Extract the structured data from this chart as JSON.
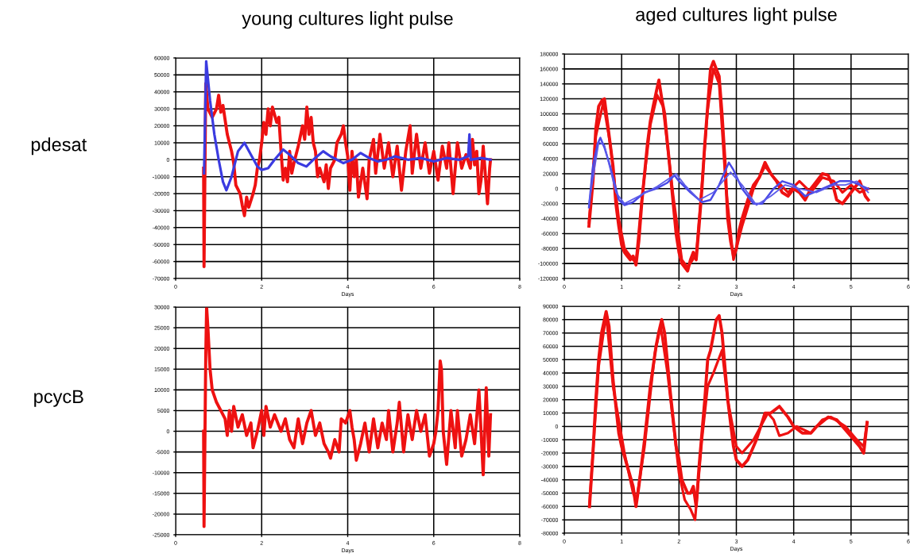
{
  "chart_data": [
    {
      "type": "line",
      "title": "young cultures light pulse",
      "xlabel": "Days",
      "ylabel": "pdesat",
      "xlim": [
        0,
        8
      ],
      "xticks": [
        0,
        2,
        4,
        6,
        8
      ],
      "ylim": [
        -70000,
        60000
      ],
      "yticks": [
        -70000,
        -60000,
        -50000,
        -40000,
        -30000,
        -20000,
        -10000,
        0,
        10000,
        20000,
        30000,
        40000,
        50000,
        60000
      ],
      "grid": true,
      "series": [
        {
          "color": "#ee1111",
          "x": [
            0.65,
            0.66,
            0.7,
            0.75,
            0.85,
            0.95,
            1.0,
            1.05,
            1.1,
            1.2,
            1.3,
            1.35,
            1.4,
            1.5,
            1.55,
            1.6,
            1.65,
            1.7,
            1.8,
            1.85,
            1.9,
            1.95,
            2.0,
            2.05,
            2.1,
            2.15,
            2.2,
            2.25,
            2.35,
            2.4,
            2.45,
            2.5,
            2.55,
            2.6,
            2.65,
            2.7,
            2.75,
            2.85,
            2.95,
            3.0,
            3.05,
            3.1,
            3.15,
            3.2,
            3.25,
            3.3,
            3.35,
            3.45,
            3.5,
            3.55,
            3.6,
            3.7,
            3.75,
            3.85,
            3.9,
            3.95,
            4.0,
            4.05,
            4.1,
            4.15,
            4.2,
            4.25,
            4.35,
            4.45,
            4.5,
            4.6,
            4.65,
            4.75,
            4.85,
            4.95,
            5.05,
            5.15,
            5.25,
            5.35,
            5.45,
            5.5,
            5.6,
            5.7,
            5.8,
            5.9,
            6.0,
            6.1,
            6.2,
            6.3,
            6.35,
            6.45,
            6.55,
            6.65,
            6.75,
            6.85,
            6.9,
            6.95,
            7.0,
            7.05,
            7.1,
            7.15,
            7.25,
            7.3,
            7.32
          ],
          "values": [
            -5000,
            -63000,
            45000,
            30000,
            25000,
            30000,
            38000,
            28000,
            32000,
            15000,
            5000,
            -2000,
            -15000,
            -20000,
            -27000,
            -33000,
            -22000,
            -28000,
            -20000,
            -15000,
            -5000,
            0,
            10000,
            22000,
            15000,
            30000,
            20000,
            31000,
            22000,
            25000,
            5000,
            -12000,
            -5000,
            -13000,
            5000,
            -8000,
            -2000,
            8000,
            20000,
            12000,
            31000,
            15000,
            25000,
            10000,
            5000,
            -10000,
            -5000,
            -13000,
            -3000,
            -17000,
            -5000,
            0,
            10000,
            15000,
            20000,
            10000,
            2000,
            -18000,
            5000,
            -10000,
            0,
            -22000,
            -5000,
            -23000,
            0,
            12000,
            -8000,
            15000,
            -5000,
            10000,
            -10000,
            8000,
            -18000,
            5000,
            20000,
            -8000,
            15000,
            -5000,
            10000,
            -8000,
            5000,
            -12000,
            8000,
            -5000,
            10000,
            -20000,
            10000,
            -5000,
            3000,
            -5000,
            12000,
            -3000,
            5000,
            -20000,
            -12000,
            8000,
            -26000,
            -5000,
            0
          ]
        },
        {
          "color": "#3b3be0",
          "x": [
            0.66,
            0.71,
            0.8,
            0.9,
            1.0,
            1.1,
            1.18,
            1.3,
            1.45,
            1.6,
            1.75,
            1.9,
            2.0,
            2.15,
            2.3,
            2.5,
            2.65,
            2.85,
            3.04,
            3.2,
            3.43,
            3.6,
            3.9,
            4.1,
            4.3,
            4.5,
            4.7,
            4.9,
            5.1,
            5.4,
            5.7,
            6.0,
            6.3,
            6.6,
            6.8,
            6.83,
            6.86,
            7.1,
            7.32
          ],
          "values": [
            -8000,
            58000,
            35000,
            15000,
            0,
            -13000,
            -18000,
            -10000,
            5000,
            10000,
            3000,
            -4000,
            -6000,
            -5000,
            0,
            6000,
            3000,
            -2000,
            -4000,
            0,
            5000,
            2000,
            -2000,
            0,
            4000,
            1000,
            -1000,
            0,
            2000,
            0,
            1000,
            -1000,
            1000,
            0,
            2000,
            15000,
            0,
            1000,
            0
          ]
        }
      ]
    },
    {
      "type": "line",
      "title": "aged cultures light pulse",
      "xlabel": "Days",
      "xlim": [
        0,
        6
      ],
      "xticks": [
        0,
        1,
        2,
        3,
        4,
        5,
        6
      ],
      "ylim": [
        -120000,
        180000
      ],
      "yticks": [
        -120000,
        -100000,
        -80000,
        -60000,
        -40000,
        -20000,
        0,
        20000,
        40000,
        60000,
        80000,
        100000,
        120000,
        140000,
        160000,
        180000
      ],
      "grid": true,
      "series": [
        {
          "color": "#ee1111",
          "x": [
            0.43,
            0.5,
            0.55,
            0.6,
            0.66,
            0.7,
            0.75,
            0.85,
            0.9,
            0.95,
            1.0,
            1.05,
            1.1,
            1.15,
            1.2,
            1.25,
            1.3,
            1.35,
            1.4,
            1.45,
            1.5,
            1.55,
            1.62,
            1.65,
            1.7,
            1.75,
            1.8,
            1.85,
            1.9,
            1.95,
            2.0,
            2.05,
            2.1,
            2.15,
            2.2,
            2.25,
            2.3,
            2.35,
            2.4,
            2.45,
            2.5,
            2.55,
            2.6,
            2.65,
            2.7,
            2.75,
            2.8,
            2.85,
            2.9,
            2.95,
            3.0,
            3.05,
            3.1,
            3.2,
            3.3,
            3.4,
            3.5,
            3.6,
            3.7,
            3.8,
            3.9,
            4.0,
            4.1,
            4.2,
            4.3,
            4.4,
            4.5,
            4.6,
            4.7,
            4.75,
            4.85,
            4.95,
            5.05,
            5.15,
            5.25,
            5.3
          ],
          "values": [
            -50000,
            10000,
            80000,
            110000,
            118000,
            120000,
            90000,
            30000,
            -20000,
            -50000,
            -75000,
            -85000,
            -90000,
            -95000,
            -90000,
            -102000,
            -70000,
            -20000,
            20000,
            60000,
            90000,
            110000,
            135000,
            145000,
            120000,
            100000,
            60000,
            20000,
            -20000,
            -60000,
            -85000,
            -100000,
            -105000,
            -110000,
            -95000,
            -85000,
            -95000,
            -50000,
            0,
            60000,
            110000,
            160000,
            170000,
            160000,
            150000,
            100000,
            40000,
            -40000,
            -70000,
            -90000,
            -80000,
            -55000,
            -40000,
            -15000,
            5000,
            15000,
            35000,
            20000,
            10000,
            -5000,
            -10000,
            0,
            -5000,
            -15000,
            0,
            10000,
            20000,
            18000,
            0,
            -15000,
            -20000,
            -10000,
            0,
            10000,
            -10000,
            -15000
          ]
        },
        {
          "color": "#ee1111",
          "x": [
            0.43,
            0.55,
            0.68,
            0.8,
            0.95,
            1.05,
            1.2,
            1.25,
            1.35,
            1.5,
            1.62,
            1.72,
            1.9,
            2.05,
            2.15,
            2.3,
            2.4,
            2.5,
            2.6,
            2.7,
            2.82,
            2.95,
            3.1,
            3.3,
            3.5,
            3.65,
            3.9,
            4.1,
            4.3,
            4.5,
            4.7,
            4.85,
            5.0,
            5.15,
            5.3
          ],
          "values": [
            -45000,
            70000,
            115000,
            60000,
            -40000,
            -80000,
            -95000,
            -98000,
            -15000,
            85000,
            125000,
            110000,
            -10000,
            -95000,
            -105000,
            -88000,
            5000,
            105000,
            160000,
            140000,
            0,
            -95000,
            -50000,
            0,
            30000,
            15000,
            -5000,
            10000,
            -5000,
            15000,
            10000,
            -5000,
            5000,
            -5000,
            0
          ]
        },
        {
          "color": "#4a4ae6",
          "x": [
            0.43,
            0.5,
            0.58,
            0.63,
            0.7,
            0.8,
            0.9,
            0.95,
            1.05,
            1.2,
            1.4,
            1.6,
            1.8,
            1.92,
            2.0,
            2.2,
            2.4,
            2.55,
            2.7,
            2.87,
            2.95,
            3.1,
            3.3,
            3.45,
            3.65,
            3.8,
            4.0,
            4.2,
            4.5,
            4.8,
            5.0,
            5.3
          ],
          "values": [
            -25000,
            30000,
            60000,
            68000,
            55000,
            30000,
            0,
            -15000,
            -22000,
            -18000,
            -5000,
            0,
            8000,
            18000,
            10000,
            -5000,
            -18000,
            -15000,
            5000,
            35000,
            25000,
            0,
            -20000,
            -20000,
            0,
            10000,
            5000,
            -10000,
            0,
            10000,
            10000,
            0
          ]
        },
        {
          "color": "#5c5cea",
          "x": [
            0.43,
            0.6,
            0.7,
            0.9,
            1.05,
            1.3,
            1.6,
            1.95,
            2.1,
            2.35,
            2.6,
            2.9,
            3.1,
            3.35,
            3.6,
            3.85,
            4.1,
            4.4,
            4.7,
            4.9,
            5.1,
            5.3
          ],
          "values": [
            -20000,
            62000,
            58000,
            -5000,
            -20000,
            -10000,
            2000,
            20000,
            5000,
            -15000,
            -5000,
            22000,
            5000,
            -22000,
            -10000,
            5000,
            0,
            -5000,
            5000,
            5000,
            10000,
            -5000
          ]
        }
      ]
    },
    {
      "type": "line",
      "xlabel": "Days",
      "ylabel": "pcycB",
      "xlim": [
        0,
        8
      ],
      "xticks": [
        0,
        2,
        4,
        6,
        8
      ],
      "ylim": [
        -25000,
        30000
      ],
      "yticks": [
        -25000,
        -20000,
        -15000,
        -10000,
        -5000,
        0,
        5000,
        10000,
        15000,
        20000,
        25000,
        30000
      ],
      "grid": true,
      "series": [
        {
          "color": "#ee1111",
          "x": [
            0.65,
            0.66,
            0.7,
            0.72,
            0.75,
            0.8,
            0.85,
            0.95,
            1.05,
            1.15,
            1.2,
            1.25,
            1.3,
            1.35,
            1.45,
            1.55,
            1.65,
            1.75,
            1.8,
            1.9,
            2.0,
            2.05,
            2.1,
            2.2,
            2.3,
            2.45,
            2.55,
            2.65,
            2.75,
            2.85,
            2.95,
            3.05,
            3.15,
            3.25,
            3.35,
            3.45,
            3.55,
            3.6,
            3.7,
            3.8,
            3.85,
            3.95,
            4.05,
            4.1,
            4.15,
            4.2,
            4.3,
            4.4,
            4.5,
            4.6,
            4.7,
            4.8,
            4.9,
            4.95,
            5.05,
            5.15,
            5.2,
            5.3,
            5.4,
            5.5,
            5.6,
            5.7,
            5.8,
            5.9,
            6.0,
            6.05,
            6.1,
            6.15,
            6.18,
            6.22,
            6.3,
            6.4,
            6.5,
            6.55,
            6.65,
            6.75,
            6.85,
            6.95,
            7.05,
            7.1,
            7.15,
            7.22,
            7.28,
            7.32
          ],
          "values": [
            0,
            -23000,
            18000,
            30000,
            25000,
            15000,
            10000,
            7000,
            5000,
            3000,
            -1000,
            5000,
            0,
            6000,
            1000,
            4000,
            -1000,
            2000,
            -4000,
            0,
            5000,
            -1000,
            6000,
            1000,
            4000,
            0,
            3000,
            -2000,
            -4000,
            3000,
            -3000,
            2000,
            5000,
            -1000,
            2000,
            -3000,
            -5000,
            -6500,
            -2000,
            -5000,
            3000,
            2000,
            5000,
            1000,
            -2000,
            -7000,
            -3000,
            2000,
            -5000,
            3000,
            -4000,
            2000,
            -2000,
            5000,
            -5000,
            2000,
            7000,
            -5000,
            4000,
            -2000,
            5000,
            0,
            4000,
            -6000,
            -3000,
            0,
            5000,
            17000,
            15000,
            0,
            -8000,
            5000,
            -4000,
            5000,
            -6000,
            -2000,
            4000,
            -3000,
            10000,
            0,
            -10500,
            10500,
            -6000,
            4000
          ]
        }
      ]
    },
    {
      "type": "line",
      "xlabel": "Days",
      "xlim": [
        0,
        6
      ],
      "xticks": [
        0,
        1,
        2,
        3,
        4,
        5,
        6
      ],
      "ylim": [
        -80000,
        90000
      ],
      "yticks": [
        -80000,
        -70000,
        -60000,
        -50000,
        -40000,
        -30000,
        -20000,
        -10000,
        0,
        10000,
        20000,
        30000,
        40000,
        50000,
        60000,
        70000,
        80000,
        90000
      ],
      "grid": true,
      "series": [
        {
          "color": "#ee1111",
          "x": [
            0.44,
            0.5,
            0.55,
            0.6,
            0.65,
            0.7,
            0.73,
            0.78,
            0.85,
            0.95,
            1.0,
            1.1,
            1.2,
            1.25,
            1.3,
            1.4,
            1.5,
            1.6,
            1.65,
            1.7,
            1.75,
            1.85,
            1.95,
            2.0,
            2.05,
            2.15,
            2.2,
            2.25,
            2.3,
            2.35,
            2.45,
            2.5,
            2.55,
            2.65,
            2.7,
            2.75,
            2.85,
            2.95,
            3.0,
            3.1,
            3.2,
            3.35,
            3.5,
            3.6,
            3.75,
            3.9,
            4.0,
            4.15,
            4.3,
            4.4,
            4.6,
            4.75,
            4.95,
            5.05,
            5.15,
            5.22,
            5.28
          ],
          "values": [
            -60000,
            -20000,
            20000,
            50000,
            70000,
            80000,
            86000,
            75000,
            35000,
            -5000,
            -15000,
            -30000,
            -45000,
            -60000,
            -45000,
            -10000,
            30000,
            60000,
            71000,
            80000,
            70000,
            25000,
            -15000,
            -25000,
            -40000,
            -50000,
            -50000,
            -45000,
            -60000,
            -30000,
            20000,
            50000,
            57000,
            80000,
            83000,
            70000,
            20000,
            -15000,
            -25000,
            -30000,
            -25000,
            -10000,
            10000,
            10000,
            15000,
            7000,
            0,
            -5000,
            -5000,
            0,
            7000,
            5000,
            -5000,
            -10000,
            -15000,
            -20000,
            3000
          ]
        },
        {
          "color": "#ee1111",
          "x": [
            0.44,
            0.6,
            0.73,
            0.85,
            1.05,
            1.2,
            1.26,
            1.4,
            1.58,
            1.68,
            1.8,
            2.0,
            2.1,
            2.2,
            2.28,
            2.4,
            2.5,
            2.6,
            2.75,
            2.85,
            3.0,
            3.1,
            3.3,
            3.55,
            3.65,
            3.75,
            3.9,
            4.05,
            4.3,
            4.5,
            4.65,
            4.9,
            5.1,
            5.22,
            5.28
          ],
          "values": [
            -58000,
            45000,
            84000,
            30000,
            -20000,
            -50000,
            -55000,
            -15000,
            55000,
            75000,
            40000,
            -35000,
            -55000,
            -62000,
            -70000,
            -10000,
            30000,
            40000,
            57000,
            20000,
            -15000,
            -20000,
            -10000,
            10000,
            5000,
            -7000,
            -5000,
            0,
            -5000,
            5000,
            7000,
            0,
            -10000,
            -15000,
            3000
          ]
        }
      ]
    }
  ]
}
